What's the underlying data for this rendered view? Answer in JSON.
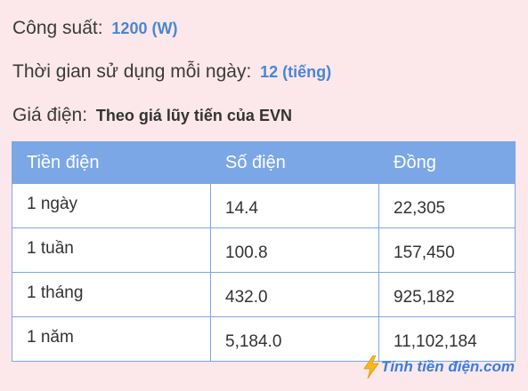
{
  "info": {
    "power_label": "Công suất:",
    "power_value": "1200 (W)",
    "usage_label": "Thời gian sử dụng mỗi ngày:",
    "usage_value": "12 (tiếng)",
    "price_label": "Giá điện:",
    "price_value": "Theo giá lũy tiến của EVN"
  },
  "table": {
    "headers": [
      "Tiền điện",
      "Số điện",
      "Đồng"
    ],
    "rows": [
      {
        "period": "1 ngày",
        "kwh": "14.4",
        "cost": "22,305"
      },
      {
        "period": "1 tuần",
        "kwh": "100.8",
        "cost": "157,450"
      },
      {
        "period": "1 tháng",
        "kwh": "432.0",
        "cost": "925,182"
      },
      {
        "period": "1 năm",
        "kwh": "5,184.0",
        "cost": "11,102,184"
      }
    ]
  },
  "brand": {
    "text": "Tính tiền điện.com",
    "icon": "lightning-bolt-icon"
  },
  "colors": {
    "background": "#fce8ea",
    "accent_blue": "#4a86d6",
    "table_header": "#7ba7e6",
    "bolt": "#f6b81c"
  }
}
